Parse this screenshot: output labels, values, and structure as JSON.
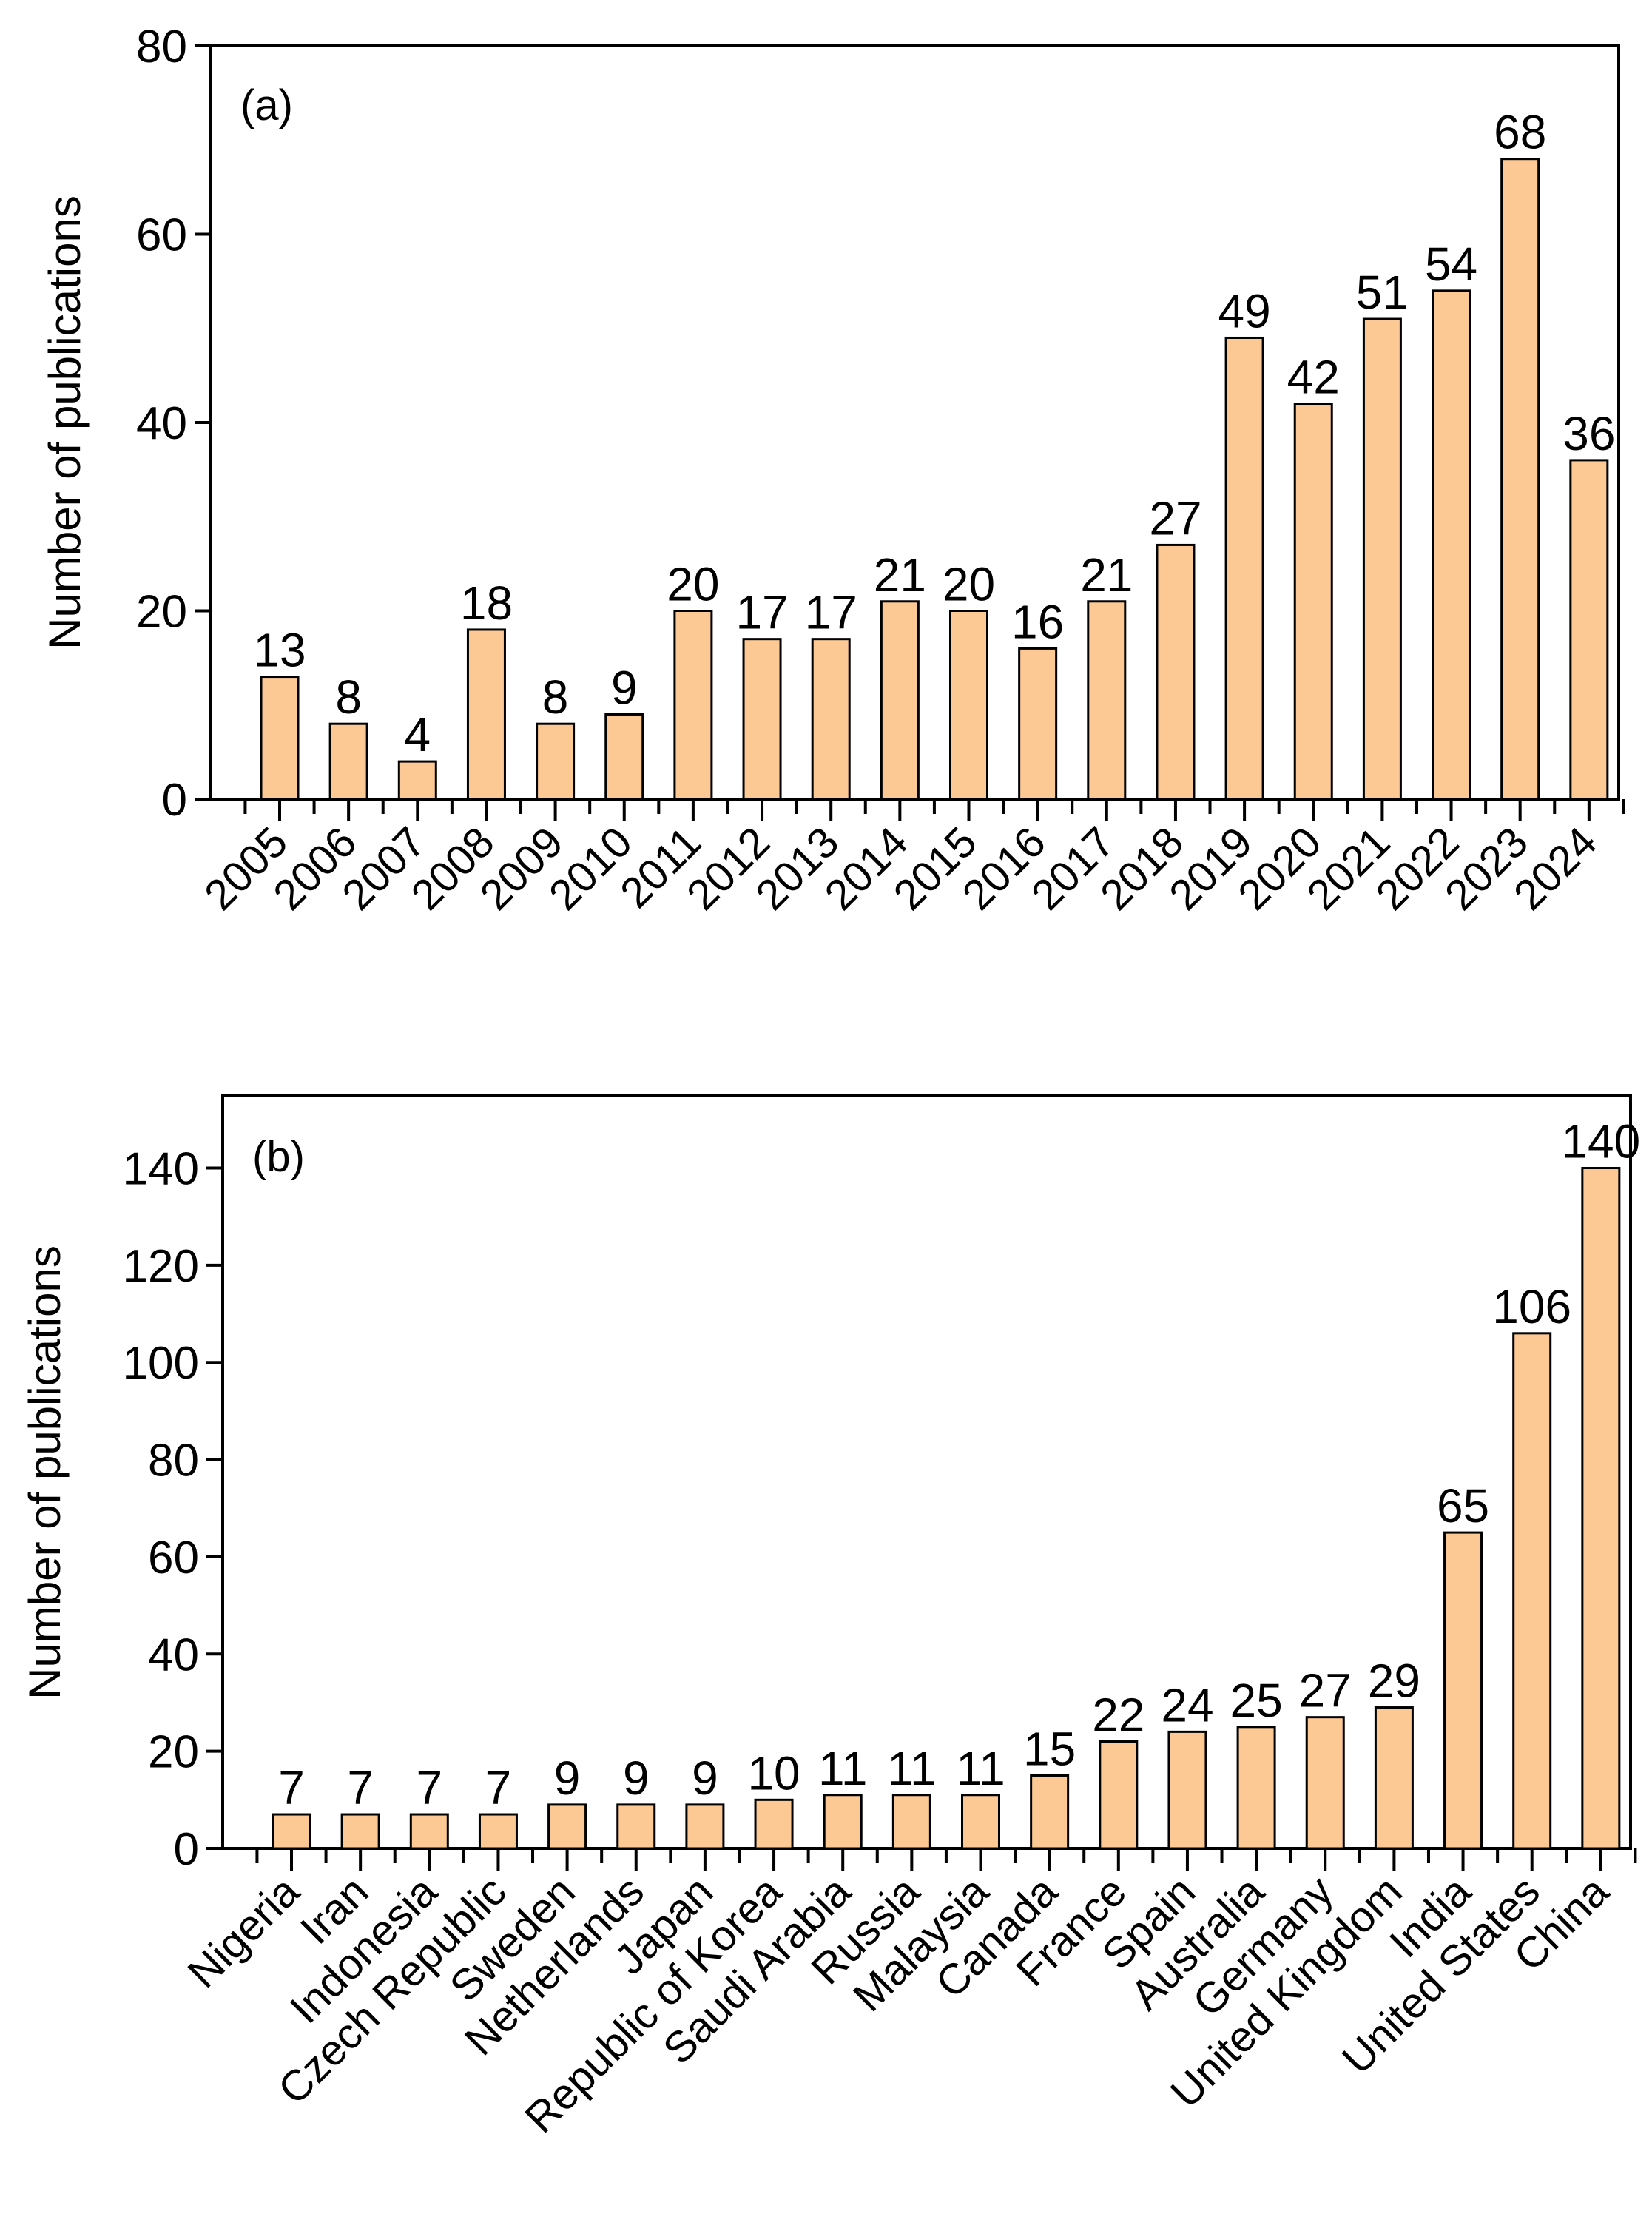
{
  "colors": {
    "bar_fill": "#FCC995",
    "bar_stroke": "#000000"
  },
  "chart_data": [
    {
      "type": "bar",
      "panel_label": "(a)",
      "ylabel": "Number of publications",
      "xlabel": "",
      "ylim": [
        0,
        80
      ],
      "yticks": [
        0,
        20,
        40,
        60,
        80
      ],
      "categories": [
        "2005",
        "2006",
        "2007",
        "2008",
        "2009",
        "2010",
        "2011",
        "2012",
        "2013",
        "2014",
        "2015",
        "2016",
        "2017",
        "2018",
        "2019",
        "2020",
        "2021",
        "2022",
        "2023",
        "2024"
      ],
      "values": [
        13,
        8,
        4,
        18,
        8,
        9,
        20,
        17,
        17,
        21,
        20,
        16,
        21,
        27,
        49,
        42,
        51,
        54,
        68,
        36
      ],
      "data_labels": [
        "13",
        "8",
        "4",
        "18",
        "8",
        "9",
        "20",
        "17",
        "17",
        "21",
        "20",
        "16",
        "21",
        "27",
        "49",
        "42",
        "51",
        "54",
        "68",
        "36"
      ],
      "grid": false,
      "legend": "none"
    },
    {
      "type": "bar",
      "panel_label": "(b)",
      "ylabel": "Number of publications",
      "xlabel": "",
      "ylim": [
        0,
        155
      ],
      "yticks": [
        0,
        20,
        40,
        60,
        80,
        100,
        120,
        140
      ],
      "categories": [
        "Nigeria",
        "Iran",
        "Indonesia",
        "Czech Republic",
        "Sweden",
        "Netherlands",
        "Japan",
        "Republic of Korea",
        "Saudi Arabia",
        "Russia",
        "Malaysia",
        "Canada",
        "France",
        "Spain",
        "Australia",
        "Germany",
        "United Kingdom",
        "India",
        "United States",
        "China"
      ],
      "values": [
        7,
        7,
        7,
        7,
        9,
        9,
        9,
        10,
        11,
        11,
        11,
        15,
        22,
        24,
        25,
        27,
        29,
        65,
        106,
        140
      ],
      "data_labels": [
        "7",
        "7",
        "7",
        "7",
        "9",
        "9",
        "9",
        "10",
        "11",
        "11",
        "11",
        "15",
        "22",
        "24",
        "25",
        "27",
        "29",
        "65",
        "106",
        "140"
      ],
      "grid": false,
      "legend": "none"
    }
  ]
}
